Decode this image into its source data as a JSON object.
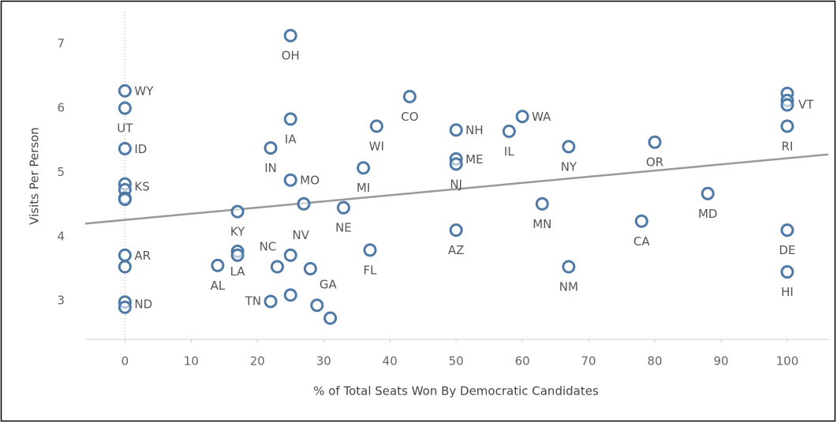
{
  "chart_data": {
    "type": "scatter",
    "x_label": "% of Total Seats Won By Democratic Candidates",
    "y_label": "Visits Per Person",
    "color": "#4e79a7",
    "x": [
      25,
      0,
      0,
      0,
      0,
      0,
      0,
      0,
      0,
      0,
      0,
      0,
      43,
      25,
      38,
      50,
      58,
      60,
      22,
      67,
      80,
      50,
      50,
      36,
      25,
      100,
      100,
      100,
      100,
      27,
      33,
      17,
      88,
      63,
      78,
      50,
      100,
      37,
      17,
      17,
      25,
      14,
      23,
      28,
      67,
      100,
      22,
      25,
      29,
      31
    ],
    "y": [
      7.13,
      6.27,
      6.0,
      5.37,
      4.82,
      4.73,
      4.6,
      4.58,
      3.71,
      3.53,
      2.98,
      2.9,
      6.18,
      5.83,
      5.72,
      5.66,
      5.64,
      5.87,
      5.38,
      5.4,
      5.47,
      5.21,
      5.13,
      5.07,
      4.88,
      6.23,
      6.12,
      6.05,
      5.72,
      4.51,
      4.45,
      4.39,
      4.67,
      4.51,
      4.24,
      4.1,
      4.1,
      3.79,
      3.77,
      3.71,
      3.71,
      3.55,
      3.53,
      3.5,
      3.53,
      3.45,
      2.99,
      3.09,
      2.93,
      2.73
    ],
    "labels": [
      "OH",
      "WY",
      "UT",
      "ID",
      "KS",
      null,
      null,
      null,
      "AR",
      null,
      "ND",
      null,
      "CO",
      "IA",
      "WI",
      "NH",
      "IL",
      "WA",
      "IN",
      "NY",
      "OR",
      "ME",
      "NJ",
      "MI",
      "MO",
      null,
      null,
      "VT",
      "RI",
      null,
      "NE",
      "KY",
      "MD",
      "MN",
      "CA",
      "AZ",
      "DE",
      "FL",
      "LA",
      null,
      "NV",
      "AL",
      "NC",
      null,
      "NM",
      "HI",
      "TN",
      null,
      "GA",
      null
    ],
    "trendline": {
      "intercept": 4.26,
      "slope": 0.0096
    },
    "xlim": [
      -6,
      106.2
    ],
    "ylim": [
      2.4,
      7.5
    ],
    "xticks": [
      0,
      10,
      20,
      30,
      40,
      50,
      60,
      70,
      80,
      90,
      100
    ],
    "yticks": [
      3,
      4,
      5,
      6,
      7
    ]
  }
}
